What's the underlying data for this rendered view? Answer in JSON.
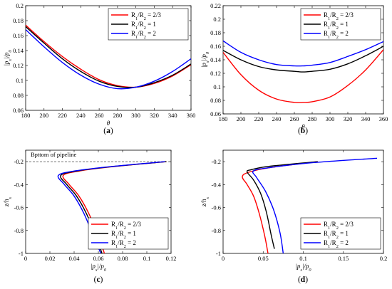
{
  "chart_data": [
    {
      "type": "line",
      "caption_letter": "a",
      "xlabel": "θ",
      "ylabel": "|p_s|/p_0",
      "xlim": [
        180,
        360
      ],
      "ylim": [
        0.06,
        0.2
      ],
      "xticks": [
        "180",
        "200",
        "220",
        "240",
        "260",
        "280",
        "300",
        "320",
        "340",
        "360"
      ],
      "yticks": [
        "0.06",
        "0.08",
        "0.1",
        "0.12",
        "0.14",
        "0.16",
        "0.18",
        "0.2"
      ],
      "legend_position": "top-right",
      "series": [
        {
          "name": "R_1/R_2 = 2/3",
          "color": "#ff0000",
          "x": [
            180,
            200,
            220,
            240,
            260,
            280,
            300,
            320,
            340,
            360
          ],
          "y": [
            0.174,
            0.152,
            0.132,
            0.115,
            0.101,
            0.093,
            0.091,
            0.096,
            0.106,
            0.121
          ]
        },
        {
          "name": "R_1/R_2 = 1",
          "color": "#000000",
          "x": [
            180,
            200,
            220,
            240,
            260,
            280,
            300,
            320,
            340,
            360
          ],
          "y": [
            0.172,
            0.15,
            0.129,
            0.112,
            0.099,
            0.092,
            0.091,
            0.097,
            0.107,
            0.122
          ]
        },
        {
          "name": "R_1/R_2 = 2",
          "color": "#0000ff",
          "x": [
            180,
            200,
            220,
            240,
            260,
            280,
            300,
            320,
            340,
            360
          ],
          "y": [
            0.168,
            0.145,
            0.124,
            0.107,
            0.095,
            0.089,
            0.091,
            0.099,
            0.112,
            0.129
          ]
        }
      ]
    },
    {
      "type": "line",
      "caption_letter": "b",
      "xlabel": "θ",
      "ylabel": "|p_s|/p_0",
      "xlim": [
        180,
        360
      ],
      "ylim": [
        0.06,
        0.22
      ],
      "xticks": [
        "180",
        "200",
        "220",
        "240",
        "260",
        "280",
        "300",
        "320",
        "340",
        "360"
      ],
      "yticks": [
        "0.06",
        "0.08",
        "0.1",
        "0.12",
        "0.14",
        "0.16",
        "0.18",
        "0.2",
        "0.22"
      ],
      "legend_position": "top-right",
      "series": [
        {
          "name": "R_1/R_2 = 2/3",
          "color": "#ff0000",
          "x": [
            180,
            200,
            220,
            240,
            260,
            270,
            280,
            300,
            320,
            340,
            360
          ],
          "y": [
            0.151,
            0.118,
            0.095,
            0.082,
            0.077,
            0.077,
            0.078,
            0.085,
            0.102,
            0.125,
            0.155
          ]
        },
        {
          "name": "R_1/R_2 = 1",
          "color": "#000000",
          "x": [
            180,
            200,
            220,
            240,
            260,
            270,
            280,
            300,
            320,
            340,
            360
          ],
          "y": [
            0.154,
            0.14,
            0.13,
            0.125,
            0.123,
            0.122,
            0.123,
            0.126,
            0.134,
            0.146,
            0.16
          ]
        },
        {
          "name": "R_1/R_2 = 2",
          "color": "#0000ff",
          "x": [
            180,
            200,
            220,
            240,
            260,
            270,
            280,
            300,
            320,
            340,
            360
          ],
          "y": [
            0.168,
            0.151,
            0.14,
            0.133,
            0.131,
            0.131,
            0.132,
            0.136,
            0.145,
            0.155,
            0.167
          ]
        }
      ]
    },
    {
      "type": "line",
      "caption_letter": "c",
      "xlabel": "|p_s|/p_0",
      "ylabel": "z/h_s",
      "xlim": [
        0,
        0.12
      ],
      "ylim": [
        -1,
        -0.1
      ],
      "xticks": [
        "0",
        "0.02",
        "0.04",
        "0.06",
        "0.08",
        "0.1",
        "0.12"
      ],
      "yticks": [
        "-1",
        "-0.8",
        "-0.6",
        "-0.4",
        "-0.2"
      ],
      "yticks_values": [
        -1,
        -0.8,
        -0.6,
        -0.4,
        -0.2
      ],
      "legend_position": "bottom-right",
      "annotation": "Bpttom of pipeline",
      "reference_line_y": -0.2,
      "series": [
        {
          "name": "R_1/R_2 = 2/3",
          "color": "#ff0000",
          "x": [
            0.116,
            0.075,
            0.045,
            0.031,
            0.036,
            0.044,
            0.052,
            0.06,
            0.065
          ],
          "y": [
            -0.2,
            -0.24,
            -0.28,
            -0.32,
            -0.4,
            -0.5,
            -0.65,
            -0.85,
            -1.0
          ]
        },
        {
          "name": "R_1/R_2 = 1",
          "color": "#000000",
          "x": [
            0.116,
            0.074,
            0.043,
            0.029,
            0.034,
            0.042,
            0.05,
            0.058,
            0.063
          ],
          "y": [
            -0.2,
            -0.24,
            -0.28,
            -0.32,
            -0.4,
            -0.5,
            -0.65,
            -0.85,
            -1.0
          ]
        },
        {
          "name": "R_1/R_2 = 2",
          "color": "#0000ff",
          "x": [
            0.115,
            0.073,
            0.041,
            0.027,
            0.032,
            0.04,
            0.048,
            0.056,
            0.062
          ],
          "y": [
            -0.2,
            -0.24,
            -0.28,
            -0.32,
            -0.4,
            -0.5,
            -0.65,
            -0.85,
            -1.0
          ]
        }
      ]
    },
    {
      "type": "line",
      "caption_letter": "d",
      "xlabel": "|p_s|/p_0",
      "ylabel": "z/h_s",
      "xlim": [
        0,
        0.2
      ],
      "ylim": [
        -1,
        -0.1
      ],
      "xticks": [
        "0",
        "0.05",
        "0.1",
        "0.15",
        "0.2"
      ],
      "yticks": [
        "-1",
        "-0.8",
        "-0.6",
        "-0.4",
        "-0.2"
      ],
      "yticks_values": [
        -1,
        -0.8,
        -0.6,
        -0.4,
        -0.2
      ],
      "legend_position": "bottom-right",
      "series": [
        {
          "name": "R_1/R_2 = 2/3",
          "color": "#ff0000",
          "x": [
            0.118,
            0.06,
            0.033,
            0.024,
            0.03,
            0.038,
            0.045,
            0.052,
            0.056
          ],
          "y": [
            -0.2,
            -0.25,
            -0.29,
            -0.33,
            -0.4,
            -0.5,
            -0.65,
            -0.85,
            -1.0
          ]
        },
        {
          "name": "R_1/R_2 = 1",
          "color": "#000000",
          "x": [
            0.118,
            0.058,
            0.035,
            0.03,
            0.038,
            0.047,
            0.054,
            0.06,
            0.064
          ],
          "y": [
            -0.2,
            -0.24,
            -0.27,
            -0.29,
            -0.36,
            -0.48,
            -0.64,
            -0.84,
            -0.96
          ]
        },
        {
          "name": "R_1/R_2 = 2",
          "color": "#0000ff",
          "x": [
            0.192,
            0.11,
            0.06,
            0.038,
            0.042,
            0.053,
            0.063,
            0.071,
            0.075
          ],
          "y": [
            -0.17,
            -0.21,
            -0.25,
            -0.28,
            -0.34,
            -0.46,
            -0.62,
            -0.82,
            -1.0
          ]
        }
      ]
    }
  ]
}
